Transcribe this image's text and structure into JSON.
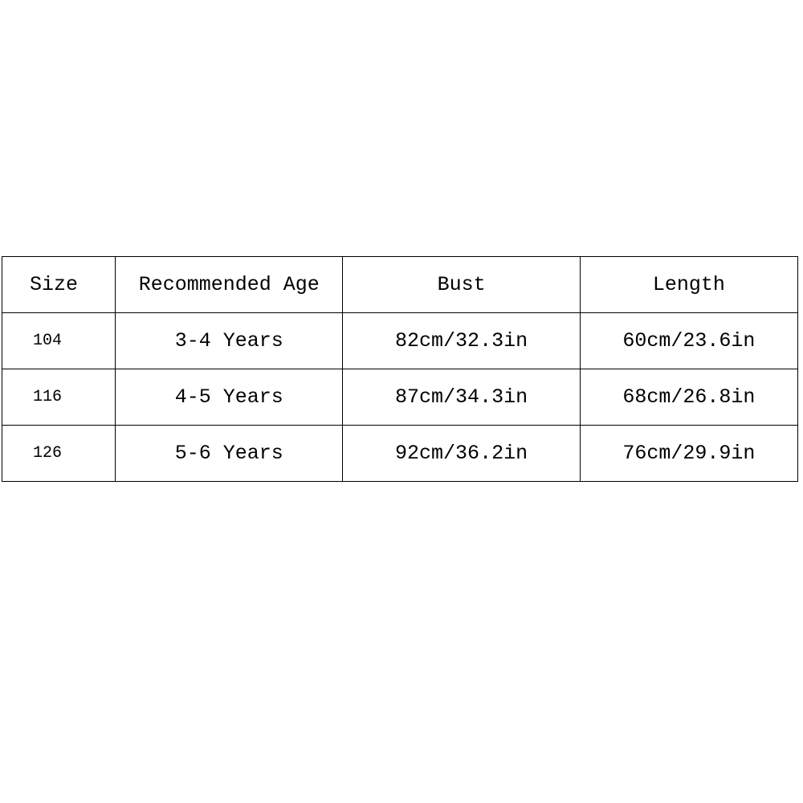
{
  "table": {
    "headers": [
      "Size",
      "Recommended Age",
      "Bust",
      "Length"
    ],
    "rows": [
      [
        "104",
        "3-4 Years",
        "82cm/32.3in",
        "60cm/23.6in"
      ],
      [
        "116",
        "4-5 Years",
        "87cm/34.3in",
        "68cm/26.8in"
      ],
      [
        "126",
        "5-6 Years",
        "92cm/36.2in",
        "76cm/29.9in"
      ]
    ]
  }
}
